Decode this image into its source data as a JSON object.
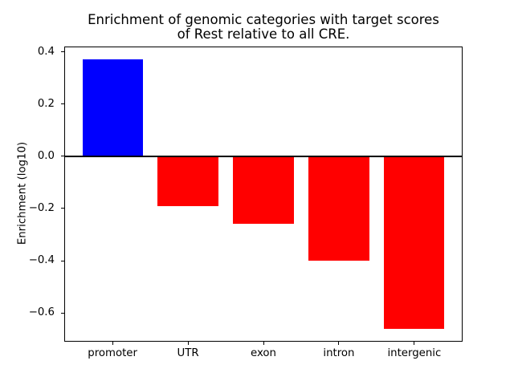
{
  "figure": {
    "title_line1": "Enrichment of genomic categories with target scores",
    "title_line2": "of Rest relative to all CRE."
  },
  "chart_data": {
    "type": "bar",
    "title": "Enrichment of genomic categories with target scores of Rest relative to all CRE.",
    "categories": [
      "promoter",
      "UTR",
      "exon",
      "intron",
      "intergenic"
    ],
    "values": [
      0.37,
      -0.19,
      -0.26,
      -0.4,
      -0.66
    ],
    "bar_colors": [
      "#0000ff",
      "#ff0000",
      "#ff0000",
      "#ff0000",
      "#ff0000"
    ],
    "positive_color": "#0000ff",
    "negative_color": "#ff0000",
    "xlabel": "",
    "ylabel": "Enrichment (log10)",
    "ylim": [
      -0.71,
      0.42
    ],
    "yticks": [
      0.4,
      0.2,
      0.0,
      -0.2,
      -0.4,
      -0.6
    ],
    "ytick_labels": [
      "0.4",
      "0.2",
      "0.0",
      "−0.2",
      "−0.4",
      "−0.6"
    ],
    "bar_width_fraction": 0.8,
    "zero_line": true,
    "grid": false,
    "legend_position": "none"
  }
}
